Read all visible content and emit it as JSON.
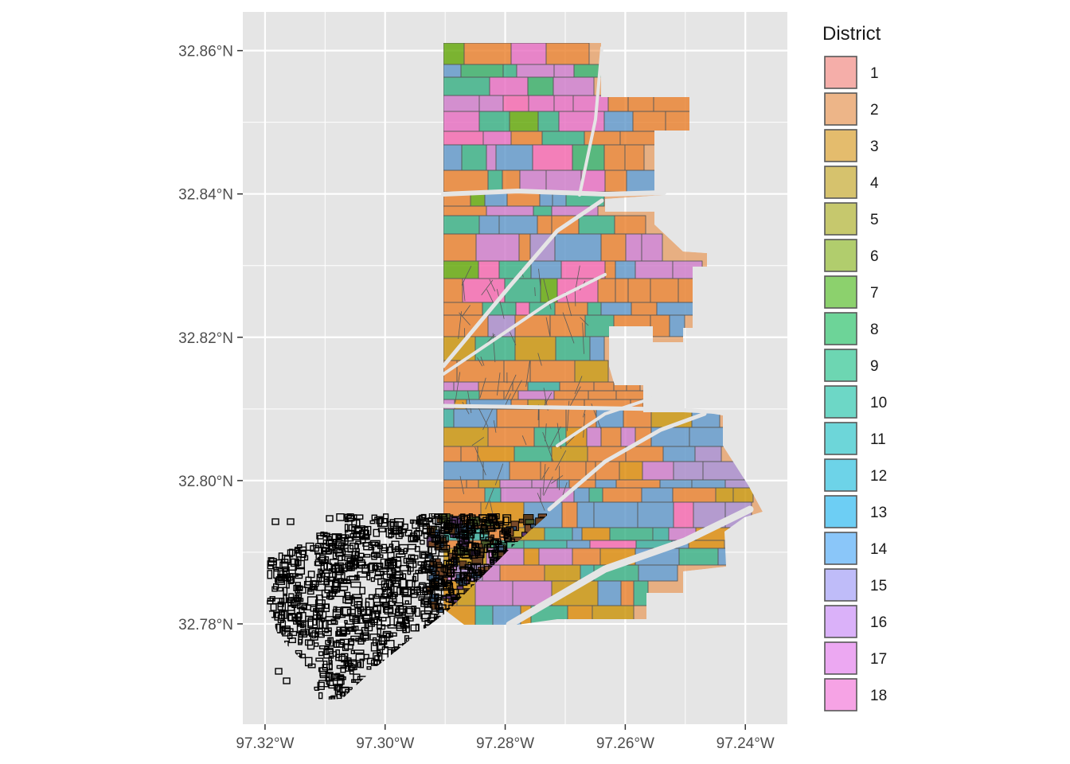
{
  "chart_data": {
    "type": "map",
    "x_axis": {
      "ticks": [
        {
          "value": -97.32,
          "label": "97.32°W"
        },
        {
          "value": -97.3,
          "label": "97.30°W"
        },
        {
          "value": -97.28,
          "label": "97.28°W"
        },
        {
          "value": -97.26,
          "label": "97.26°W"
        },
        {
          "value": -97.24,
          "label": "97.24°W"
        }
      ],
      "range": [
        -97.3237,
        -97.233
      ]
    },
    "y_axis": {
      "ticks": [
        {
          "value": 32.86,
          "label": "32.86°N"
        },
        {
          "value": 32.84,
          "label": "32.84°N"
        },
        {
          "value": 32.82,
          "label": "32.82°N"
        },
        {
          "value": 32.8,
          "label": "32.80°N"
        },
        {
          "value": 32.78,
          "label": "32.78°N"
        }
      ],
      "range": [
        32.766,
        32.8654
      ]
    },
    "grid": true,
    "legend": {
      "title": "District",
      "placement": "right",
      "entries": [
        {
          "label": "1",
          "color": "#F8766D"
        },
        {
          "label": "2",
          "color": "#EA8331"
        },
        {
          "label": "3",
          "color": "#D89000"
        },
        {
          "label": "4",
          "color": "#C09B00"
        },
        {
          "label": "5",
          "color": "#A3A500"
        },
        {
          "label": "6",
          "color": "#7CAE00"
        },
        {
          "label": "7",
          "color": "#39B600"
        },
        {
          "label": "8",
          "color": "#00BB4E"
        },
        {
          "label": "9",
          "color": "#00BF7D"
        },
        {
          "label": "10",
          "color": "#00C1A3"
        },
        {
          "label": "11",
          "color": "#00BFC4"
        },
        {
          "label": "12",
          "color": "#00BAE0"
        },
        {
          "label": "13",
          "color": "#00B0F6"
        },
        {
          "label": "14",
          "color": "#35A2FF"
        },
        {
          "label": "15",
          "color": "#9590FF"
        },
        {
          "label": "16",
          "color": "#C77CFF"
        },
        {
          "label": "17",
          "color": "#E76BF3"
        },
        {
          "label": "18",
          "color": "#FA62DB"
        }
      ]
    },
    "colors": {
      "panel_background": "#E5E5E5",
      "grid_line": "#FFFFFF",
      "parcel_outline": "#595959",
      "overlay_outline": "#000000"
    },
    "layers": [
      {
        "name": "district parcels",
        "description_kind": "filled polygons colored by district"
      },
      {
        "name": "outlined parcels",
        "description_kind": "black outline polygons"
      }
    ]
  }
}
